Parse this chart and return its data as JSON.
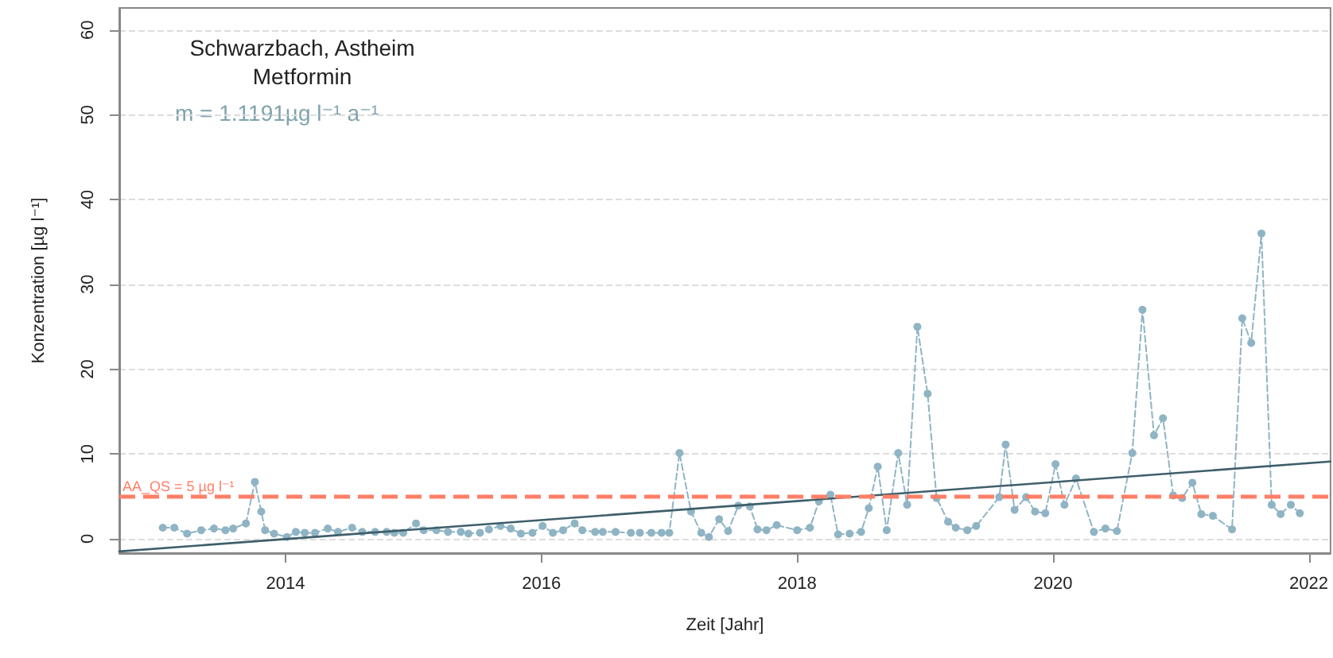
{
  "chart_data": {
    "type": "line",
    "title": "Schwarzbach, Astheim",
    "subtitle": "Metformin",
    "xlabel": "Zeit [Jahr]",
    "ylabel": "Konzentration [µg l⁻¹]",
    "annotations": [
      "m = 1.1191µg l⁻¹ a⁻¹"
    ],
    "xlim": [
      2012.7,
      2022.17
    ],
    "ylim": [
      -1.7,
      62.6
    ],
    "xticks": [
      2014,
      2016,
      2018,
      2020,
      2022
    ],
    "yticks": [
      0,
      10,
      20,
      30,
      40,
      50,
      60
    ],
    "grid": "y",
    "series": [
      {
        "color": "#8fb4c4",
        "marker": "circle",
        "line_style": "dashed",
        "x": [
          2013.04,
          2013.13,
          2013.23,
          2013.34,
          2013.44,
          2013.53,
          2013.59,
          2013.69,
          2013.76,
          2013.81,
          2013.84,
          2013.91,
          2014.01,
          2014.08,
          2014.15,
          2014.23,
          2014.33,
          2014.41,
          2014.52,
          2014.6,
          2014.7,
          2014.79,
          2014.85,
          2014.92,
          2015.02,
          2015.08,
          2015.18,
          2015.27,
          2015.37,
          2015.43,
          2015.52,
          2015.59,
          2015.68,
          2015.76,
          2015.84,
          2015.93,
          2016.01,
          2016.09,
          2016.17,
          2016.26,
          2016.32,
          2016.42,
          2016.48,
          2016.58,
          2016.7,
          2016.77,
          2016.86,
          2016.94,
          2017.0,
          2017.08,
          2017.17,
          2017.25,
          2017.31,
          2017.39,
          2017.46,
          2017.54,
          2017.63,
          2017.69,
          2017.76,
          2017.84,
          2018.0,
          2018.1,
          2018.17,
          2018.26,
          2018.32,
          2018.41,
          2018.5,
          2018.56,
          2018.63,
          2018.7,
          2018.79,
          2018.86,
          2018.94,
          2019.02,
          2019.09,
          2019.18,
          2019.24,
          2019.33,
          2019.4,
          2019.58,
          2019.63,
          2019.7,
          2019.79,
          2019.86,
          2019.94,
          2020.02,
          2020.09,
          2020.18,
          2020.32,
          2020.41,
          2020.5,
          2020.62,
          2020.7,
          2020.79,
          2020.86,
          2020.94,
          2021.01,
          2021.09,
          2021.16,
          2021.25,
          2021.4,
          2021.48,
          2021.55,
          2021.63,
          2021.71,
          2021.78,
          2021.86,
          2021.93
        ],
        "values": [
          1.3,
          1.3,
          0.6,
          1.0,
          1.2,
          1.0,
          1.2,
          1.8,
          6.7,
          3.2,
          1.0,
          0.6,
          0.2,
          0.8,
          0.7,
          0.7,
          1.2,
          0.8,
          1.3,
          0.8,
          0.8,
          0.8,
          0.7,
          0.7,
          1.8,
          1.0,
          1.0,
          0.8,
          0.8,
          0.6,
          0.7,
          1.1,
          1.5,
          1.2,
          0.6,
          0.7,
          1.5,
          0.7,
          1.0,
          1.8,
          1.0,
          0.8,
          0.8,
          0.8,
          0.7,
          0.7,
          0.7,
          0.7,
          0.7,
          10.1,
          3.2,
          0.7,
          0.2,
          2.3,
          0.9,
          3.9,
          3.8,
          1.1,
          1.0,
          1.6,
          1.0,
          1.3,
          4.4,
          5.2,
          0.5,
          0.6,
          0.8,
          3.6,
          8.5,
          1.0,
          10.1,
          4.0,
          25.0,
          17.1,
          4.8,
          2.0,
          1.3,
          1.0,
          1.5,
          4.9,
          11.1,
          3.4,
          4.9,
          3.2,
          3.0,
          8.8,
          4.0,
          7.1,
          0.8,
          1.2,
          0.9,
          10.1,
          27.0,
          12.2,
          14.2,
          5.1,
          4.8,
          6.6,
          2.9,
          2.7,
          1.1,
          26.0,
          23.1,
          36.0,
          4.0,
          2.9,
          4.0,
          3.0
        ]
      },
      {
        "color": "#3e5f6b",
        "marker": "none",
        "line_style": "solid",
        "x": [
          2012.7,
          2022.17
        ],
        "values": [
          -1.5,
          9.1
        ]
      }
    ],
    "ref_lines": [
      {
        "axis": "y",
        "value": 5,
        "label": "AA_QS = 5 µg l⁻¹",
        "color": "#ff7f66",
        "line_style": "dashed"
      }
    ]
  }
}
